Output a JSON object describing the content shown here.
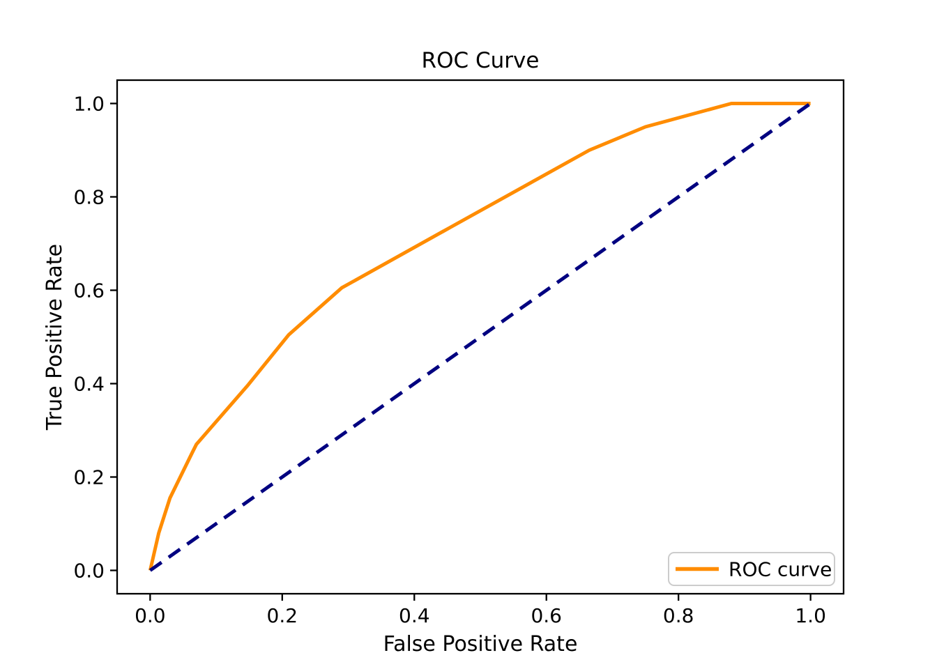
{
  "chart_data": {
    "type": "line",
    "title": "ROC Curve",
    "xlabel": "False Positive Rate",
    "ylabel": "True Positive Rate",
    "xlim": [
      -0.05,
      1.05
    ],
    "ylim": [
      -0.05,
      1.05
    ],
    "xticks": [
      0.0,
      0.2,
      0.4,
      0.6,
      0.8,
      1.0
    ],
    "yticks": [
      0.0,
      0.2,
      0.4,
      0.6,
      0.8,
      1.0
    ],
    "grid": false,
    "legend": {
      "position": "lower right",
      "entries": [
        {
          "label": "ROC curve",
          "color": "#FF8C00",
          "style": "solid"
        }
      ]
    },
    "series": [
      {
        "name": "ROC curve",
        "color": "#FF8C00",
        "style": "solid",
        "points": [
          [
            0.0,
            0.0
          ],
          [
            0.013,
            0.08
          ],
          [
            0.03,
            0.155
          ],
          [
            0.063,
            0.25
          ],
          [
            0.07,
            0.27
          ],
          [
            0.147,
            0.395
          ],
          [
            0.21,
            0.505
          ],
          [
            0.29,
            0.605
          ],
          [
            0.455,
            0.735
          ],
          [
            0.665,
            0.9
          ],
          [
            0.75,
            0.95
          ],
          [
            0.88,
            1.0
          ],
          [
            1.0,
            1.0
          ]
        ]
      },
      {
        "name": "chance-diagonal",
        "color": "#000080",
        "style": "dashed",
        "points": [
          [
            0.0,
            0.0
          ],
          [
            1.0,
            1.0
          ]
        ]
      }
    ]
  },
  "colors": {
    "roc_line": "#FF8C00",
    "chance_line": "#000080",
    "spine": "#000000",
    "legend_border": "#CCCCCC",
    "background": "#FFFFFF"
  }
}
